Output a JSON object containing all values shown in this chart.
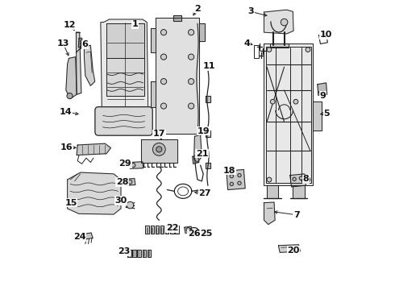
{
  "bg": "#ffffff",
  "lc": "#222222",
  "label_fs": 8,
  "labels": {
    "1": [
      0.285,
      0.083,
      0.315,
      0.093
    ],
    "2": [
      0.5,
      0.028,
      0.51,
      0.038
    ],
    "3": [
      0.685,
      0.04,
      0.72,
      0.05
    ],
    "4": [
      0.68,
      0.148,
      0.708,
      0.155
    ],
    "5": [
      0.935,
      0.39,
      0.91,
      0.39
    ],
    "6": [
      0.115,
      0.155,
      0.118,
      0.175
    ],
    "7": [
      0.84,
      0.74,
      0.815,
      0.74
    ],
    "8": [
      0.87,
      0.62,
      0.845,
      0.625
    ],
    "9": [
      0.93,
      0.33,
      0.91,
      0.335
    ],
    "10": [
      0.94,
      0.118,
      0.925,
      0.13
    ],
    "11": [
      0.54,
      0.228,
      0.54,
      0.248
    ],
    "12": [
      0.058,
      0.088,
      0.075,
      0.103
    ],
    "13": [
      0.035,
      0.15,
      0.05,
      0.178
    ],
    "14": [
      0.048,
      0.385,
      0.085,
      0.385
    ],
    "15": [
      0.065,
      0.7,
      0.095,
      0.72
    ],
    "16": [
      0.055,
      0.51,
      0.09,
      0.51
    ],
    "17": [
      0.375,
      0.465,
      0.383,
      0.49
    ],
    "18": [
      0.617,
      0.59,
      0.627,
      0.61
    ],
    "19": [
      0.525,
      0.455,
      0.51,
      0.48
    ],
    "20": [
      0.83,
      0.868,
      0.808,
      0.868
    ],
    "21": [
      0.518,
      0.532,
      0.507,
      0.548
    ],
    "22": [
      0.415,
      0.79,
      0.398,
      0.808
    ],
    "23": [
      0.248,
      0.87,
      0.27,
      0.875
    ],
    "24": [
      0.095,
      0.82,
      0.115,
      0.82
    ],
    "25": [
      0.528,
      0.81,
      0.51,
      0.8
    ],
    "26": [
      0.49,
      0.81,
      0.47,
      0.8
    ],
    "27": [
      0.527,
      0.672,
      0.505,
      0.678
    ],
    "28": [
      0.243,
      0.63,
      0.258,
      0.638
    ],
    "29": [
      0.253,
      0.568,
      0.272,
      0.575
    ],
    "30": [
      0.238,
      0.695,
      0.255,
      0.705
    ]
  }
}
